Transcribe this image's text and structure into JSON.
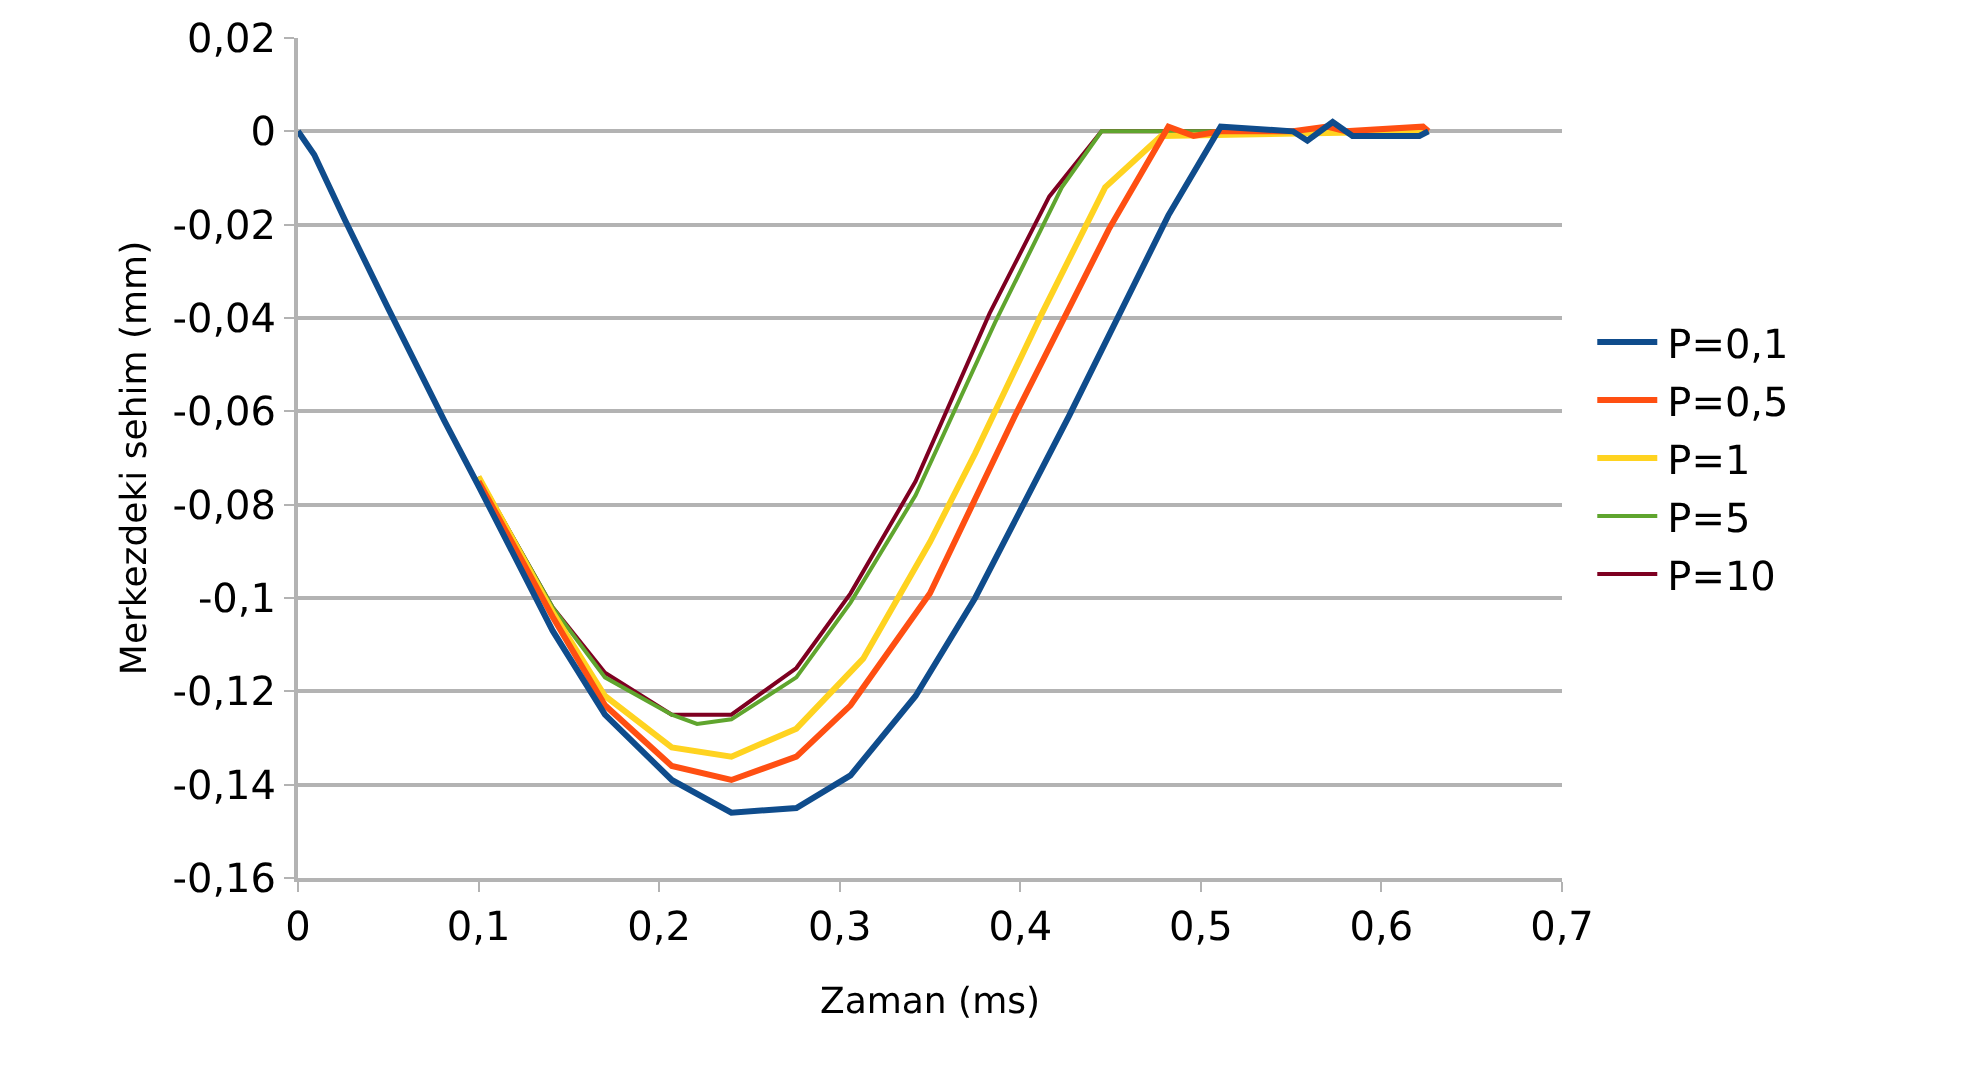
{
  "chart_data": {
    "type": "line",
    "xlabel": "Zaman (ms)",
    "ylabel": "Merkezdeki sehim (mm)",
    "xlim": [
      0,
      0.7
    ],
    "xticks": [
      {
        "value": 0,
        "label": "0"
      },
      {
        "value": 0.1,
        "label": "0,1"
      },
      {
        "value": 0.2,
        "label": "0,2"
      },
      {
        "value": 0.3,
        "label": "0,3"
      },
      {
        "value": 0.4,
        "label": "0,4"
      },
      {
        "value": 0.5,
        "label": "0,5"
      },
      {
        "value": 0.6,
        "label": "0,6"
      },
      {
        "value": 0.7,
        "label": "0,7"
      }
    ],
    "ylim": [
      -0.16,
      0.02
    ],
    "yticks": [
      {
        "value": -0.16,
        "label": "-0,16"
      },
      {
        "value": -0.14,
        "label": "-0,14"
      },
      {
        "value": -0.12,
        "label": "-0,12"
      },
      {
        "value": -0.1,
        "label": "-0,1"
      },
      {
        "value": -0.08,
        "label": "-0,08"
      },
      {
        "value": -0.06,
        "label": "-0,06"
      },
      {
        "value": -0.04,
        "label": "-0,04"
      },
      {
        "value": -0.02,
        "label": "-0,02"
      },
      {
        "value": 0,
        "label": "0"
      },
      {
        "value": 0.02,
        "label": "0,02"
      }
    ],
    "grid": "y",
    "legend": "right",
    "marker": "none",
    "line_style": "solid",
    "series": [
      {
        "name": "P=0,1",
        "color": "#0f4c8c",
        "x": [
          0,
          0.009,
          0.026,
          0.05,
          0.081,
          0.1,
          0.141,
          0.17,
          0.207,
          0.24,
          0.276,
          0.306,
          0.342,
          0.375,
          0.427,
          0.482,
          0.511,
          0.551,
          0.559,
          0.573,
          0.584,
          0.621,
          0.626
        ],
        "values": [
          0,
          -0.005,
          -0.019,
          -0.038,
          -0.062,
          -0.076,
          -0.107,
          -0.125,
          -0.139,
          -0.146,
          -0.145,
          -0.138,
          -0.121,
          -0.1,
          -0.061,
          -0.018,
          0.001,
          0,
          -0.002,
          0.002,
          -0.001,
          -0.001,
          0
        ]
      },
      {
        "name": "P=0,5",
        "color": "#ff4f12",
        "x": [
          0.1,
          0.141,
          0.17,
          0.207,
          0.24,
          0.276,
          0.306,
          0.35,
          0.397,
          0.449,
          0.482,
          0.496,
          0.511,
          0.551,
          0.57,
          0.58,
          0.623,
          0.626
        ],
        "values": [
          -0.075,
          -0.104,
          -0.123,
          -0.136,
          -0.139,
          -0.134,
          -0.123,
          -0.099,
          -0.061,
          -0.021,
          0.001,
          -0.001,
          0,
          0,
          0.001,
          0,
          0.001,
          0
        ]
      },
      {
        "name": "P=1",
        "color": "#ffd320",
        "x": [
          0.1,
          0.141,
          0.17,
          0.207,
          0.24,
          0.276,
          0.313,
          0.35,
          0.375,
          0.412,
          0.447,
          0.478,
          0.626
        ],
        "values": [
          -0.074,
          -0.103,
          -0.121,
          -0.132,
          -0.134,
          -0.128,
          -0.113,
          -0.088,
          -0.069,
          -0.039,
          -0.012,
          -0.001,
          0
        ]
      },
      {
        "name": "P=5",
        "color": "#5fa52e",
        "x": [
          0.1,
          0.141,
          0.17,
          0.207,
          0.221,
          0.24,
          0.276,
          0.306,
          0.342,
          0.386,
          0.423,
          0.445,
          0.626
        ],
        "values": [
          -0.074,
          -0.102,
          -0.117,
          -0.125,
          -0.127,
          -0.126,
          -0.117,
          -0.101,
          -0.078,
          -0.041,
          -0.012,
          0,
          0
        ]
      },
      {
        "name": "P=10",
        "color": "#7e0021",
        "x": [
          0.1,
          0.141,
          0.17,
          0.207,
          0.221,
          0.24,
          0.276,
          0.306,
          0.342,
          0.383,
          0.416,
          0.445,
          0.626
        ],
        "values": [
          -0.074,
          -0.102,
          -0.116,
          -0.125,
          -0.125,
          -0.125,
          -0.115,
          -0.099,
          -0.075,
          -0.039,
          -0.014,
          0,
          0
        ]
      }
    ]
  }
}
